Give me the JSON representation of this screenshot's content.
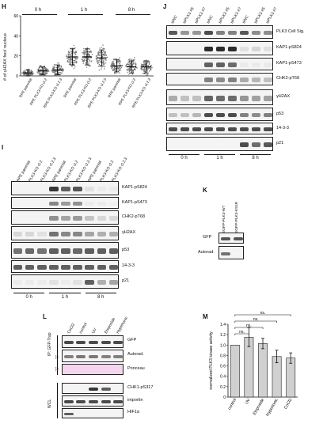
{
  "panel_H": {
    "letter": "H",
    "ylabel": "# of γH2AX foci/ nucleus",
    "yticks": [
      "0",
      "20",
      "40",
      "60"
    ],
    "time_labels": [
      "0 h",
      "1 h",
      "8 h"
    ],
    "lanes": [
      "RPE parental",
      "RPE PLK3-KO cl.2",
      "RPE PLK3-KO cl.2.3",
      "RPE parental",
      "RPE PLK3-KO cl.2",
      "RPE PLK3-KO cl.2.3",
      "RPE parental",
      "RPE PLK3-KO cl.2",
      "RPE PLK3-KO cl.2.3"
    ]
  },
  "panel_I": {
    "letter": "I",
    "lanes": [
      "RPE parental",
      "PLK3-KO cl.2",
      "PLK3-KO cl.2.3",
      "RPE parental",
      "PLK3-KO cl.2",
      "PLK3-KO cl.2.3",
      "RPE parental",
      "PLK3-KO cl.2",
      "PLK3-KO cl.2.3"
    ],
    "rows": [
      "KAP1-pS824",
      "KAP1-pS473",
      "CHK2-pT68",
      "γH2AX",
      "p53",
      "14-3-3",
      "p21"
    ],
    "time_labels": [
      "0 h",
      "1 h",
      "8 h"
    ]
  },
  "panel_J": {
    "letter": "J",
    "lanes": [
      "siNC",
      "siPLK3 #5",
      "siPLK3 #7",
      "siNC",
      "siPLK3 #5",
      "siPLK3 #7",
      "siNC",
      "siPLK3 #5",
      "siPLK3 #7"
    ],
    "rows": [
      "PLK3 Cell Sig.",
      "KAP1-pS824",
      "KAP1-pS473",
      "CHK2-pT68",
      "γH2AX",
      "p53",
      "14-3-3",
      "p21"
    ],
    "time_labels": [
      "0 h",
      "1 h",
      "8 h"
    ]
  },
  "panel_K": {
    "letter": "K",
    "lanes": [
      "EGFP-PLK3-WT",
      "EGFP-PLK3-K91R"
    ],
    "rows": [
      "GFP",
      "Autorad."
    ]
  },
  "panel_L": {
    "letter": "L",
    "lanes": [
      "CoCl2",
      "control",
      "UV",
      "Etoposide",
      "Hypertonic"
    ],
    "group_ip": "IP: GFP-Trap",
    "group_wcl": "WCL",
    "rows": [
      "GFP",
      "Autorad.",
      "Ponceau",
      "CHK1-pS317",
      "importin",
      "HIF1α"
    ]
  },
  "panel_M": {
    "letter": "M",
    "ns_labels": [
      "ns.",
      "ns.",
      "ns.",
      "ns."
    ]
  },
  "chart_data": {
    "type": "bar",
    "categories": [
      "control",
      "UV",
      "Etoposide",
      "Hypertonic",
      "CoCl2"
    ],
    "values": [
      1.0,
      1.15,
      1.03,
      0.78,
      0.75
    ],
    "errors": [
      0.0,
      0.18,
      0.1,
      0.12,
      0.1
    ],
    "ylabel": "normalized PLK3 kinase activity",
    "yticks": [
      "0",
      "0.2",
      "0.4",
      "0.6",
      "0.8",
      "1.0",
      "1.2",
      "1.4"
    ],
    "ylim": [
      0,
      1.4
    ],
    "bar_color": "#d0d0d0"
  }
}
